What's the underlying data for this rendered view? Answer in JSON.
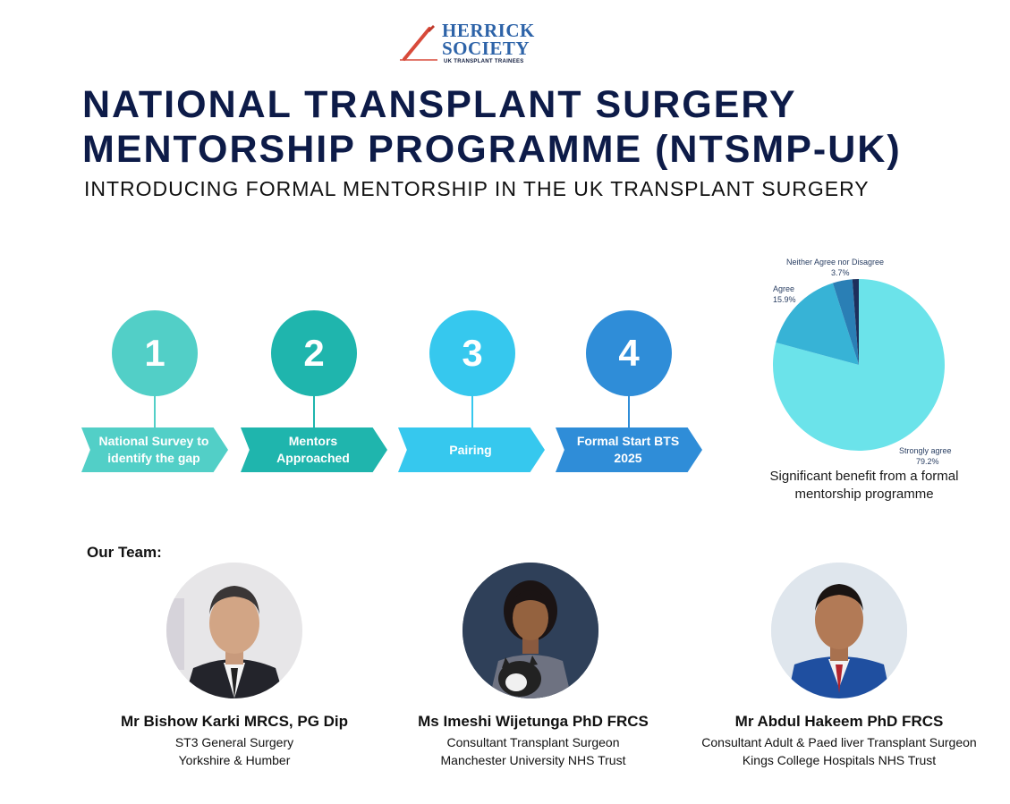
{
  "logo": {
    "line1": "HERRICK",
    "line2": "SOCIETY",
    "tagline": "UK TRANSPLANT TRAINEES"
  },
  "header": {
    "title_line1": "NATIONAL TRANSPLANT  SURGERY",
    "title_line2": "MENTORSHIP  PROGRAMME (NTSMP-UK)",
    "subtitle": "INTRODUCING FORMAL MENTORSHIP IN THE UK TRANSPLANT SURGERY"
  },
  "steps": [
    {
      "number": "1",
      "label": "National Survey to identify the gap",
      "color": "#52cfc7"
    },
    {
      "number": "2",
      "label": "Mentors Approached",
      "color": "#1fb5ad"
    },
    {
      "number": "3",
      "label": "Pairing",
      "color": "#36c8ee"
    },
    {
      "number": "4",
      "label": "Formal Start BTS 2025",
      "color": "#2f8dd8"
    }
  ],
  "chart_data": {
    "type": "pie",
    "title": "Significant benefit from a formal mentorship programme",
    "slices": [
      {
        "label": "Strongly agree",
        "value": 79.2,
        "display": "79.2%",
        "color": "#6be3ea"
      },
      {
        "label": "Agree",
        "value": 15.9,
        "display": "15.9%",
        "color": "#37b3d6"
      },
      {
        "label": "Neither Agree nor Disagree",
        "value": 3.7,
        "display": "3.7%",
        "color": "#2a7fb5"
      },
      {
        "label": "",
        "value": 1.2,
        "display": "",
        "color": "#1d2f5c"
      }
    ]
  },
  "team": {
    "label": "Our Team:",
    "members": [
      {
        "name": "Mr Bishow Karki MRCS, PG Dip",
        "line1": "ST3 General Surgery",
        "line2": "Yorkshire & Humber"
      },
      {
        "name": "Ms  Imeshi Wijetunga PhD FRCS",
        "line1": "Consultant Transplant Surgeon",
        "line2": "Manchester University NHS Trust"
      },
      {
        "name": "Mr Abdul Hakeem PhD FRCS",
        "line1": "Consultant Adult & Paed liver Transplant  Surgeon",
        "line2": "Kings College Hospitals NHS Trust"
      }
    ]
  }
}
